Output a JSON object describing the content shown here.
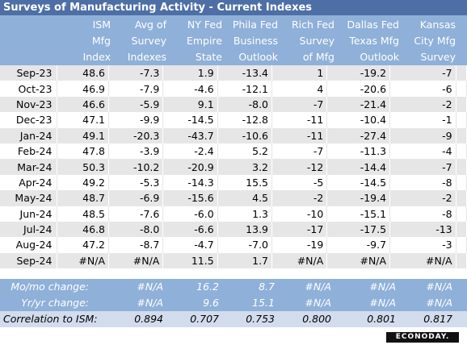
{
  "title": "Surveys of Manufacturing Activity - Current Indexes",
  "headers": [
    [
      "ISM",
      "Mfg",
      "Index"
    ],
    [
      "Avg of",
      "Survey",
      "Indexes"
    ],
    [
      "NY Fed",
      "Empire",
      "State"
    ],
    [
      "Phila Fed",
      "Business",
      "Outlook"
    ],
    [
      "Rich Fed",
      "Survey",
      "of Mfg"
    ],
    [
      "Dallas Fed",
      "Texas Mfg",
      "Outlook"
    ],
    [
      "Kansas",
      "City Mfg",
      "Survey"
    ]
  ],
  "rows": [
    [
      "Sep-23",
      "48.6",
      "-7.3",
      "1.9",
      "-13.4",
      "1",
      "-19.2",
      "-7"
    ],
    [
      "Oct-23",
      "46.9",
      "-7.9",
      "-4.6",
      "-12.1",
      "4",
      "-20.6",
      "-6"
    ],
    [
      "Nov-23",
      "46.6",
      "-5.9",
      "9.1",
      "-8.0",
      "-7",
      "-21.4",
      "-2"
    ],
    [
      "Dec-23",
      "47.1",
      "-9.9",
      "-14.5",
      "-12.8",
      "-11",
      "-10.4",
      "-1"
    ],
    [
      "Jan-24",
      "49.1",
      "-20.3",
      "-43.7",
      "-10.6",
      "-11",
      "-27.4",
      "-9"
    ],
    [
      "Feb-24",
      "47.8",
      "-3.9",
      "-2.4",
      "5.2",
      "-7",
      "-11.3",
      "-4"
    ],
    [
      "Mar-24",
      "50.3",
      "-10.2",
      "-20.9",
      "3.2",
      "-12",
      "-14.4",
      "-7"
    ],
    [
      "Apr-24",
      "49.2",
      "-5.3",
      "-14.3",
      "15.5",
      "-5",
      "-14.5",
      "-8"
    ],
    [
      "May-24",
      "48.7",
      "-6.9",
      "-15.6",
      "4.5",
      "-2",
      "-19.4",
      "-2"
    ],
    [
      "Jun-24",
      "48.5",
      "-7.6",
      "-6.0",
      "1.3",
      "-10",
      "-15.1",
      "-8"
    ],
    [
      "Jul-24",
      "46.8",
      "-8.0",
      "-6.6",
      "13.9",
      "-17",
      "-17.5",
      "-13"
    ],
    [
      "Aug-24",
      "47.2",
      "-8.7",
      "-4.7",
      "-7.0",
      "-19",
      "-9.7",
      "-3"
    ],
    [
      "Sep-24",
      "#N/A",
      "#N/A",
      "11.5",
      "1.7",
      "#N/A",
      "#N/A",
      "#N/A"
    ]
  ],
  "footer": [
    {
      "label": "Mo/mo change:",
      "values": [
        "#N/A",
        "16.2",
        "8.7",
        "#N/A",
        "#N/A",
        "#N/A"
      ]
    },
    {
      "label": "Yr/yr change:",
      "values": [
        "#N/A",
        "9.6",
        "15.1",
        "#N/A",
        "#N/A",
        "#N/A"
      ]
    },
    {
      "label": "Correlation to ISM:",
      "values": [
        "0.894",
        "0.707",
        "0.753",
        "0.800",
        "0.801",
        "0.817"
      ]
    }
  ],
  "logo": "ECONODAY."
}
